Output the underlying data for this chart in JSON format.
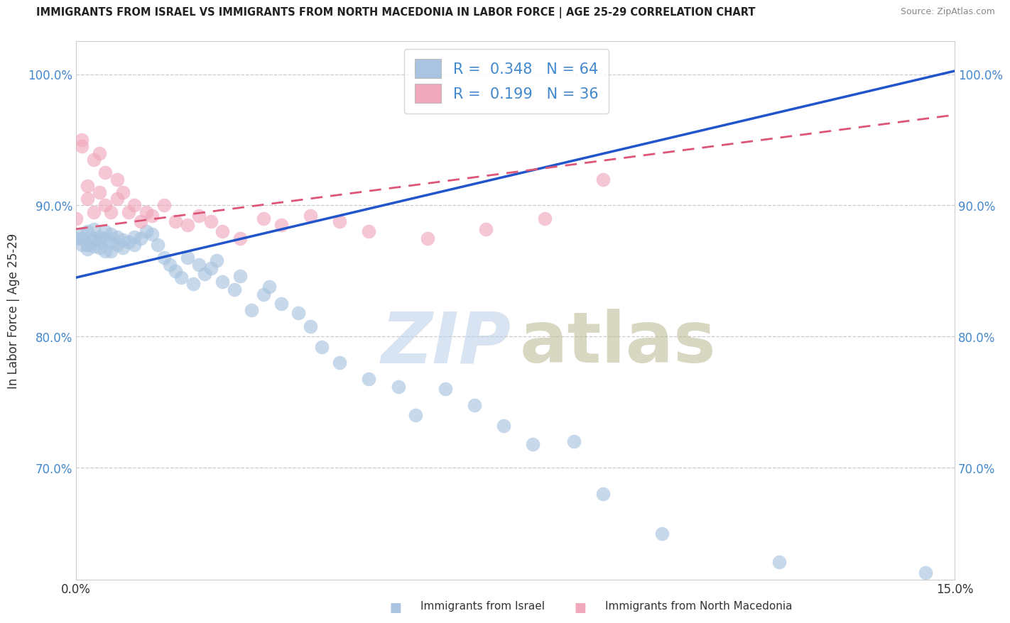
{
  "title": "IMMIGRANTS FROM ISRAEL VS IMMIGRANTS FROM NORTH MACEDONIA IN LABOR FORCE | AGE 25-29 CORRELATION CHART",
  "source": "Source: ZipAtlas.com",
  "xlabel_israel": "Immigrants from Israel",
  "xlabel_macedonia": "Immigrants from North Macedonia",
  "ylabel": "In Labor Force | Age 25-29",
  "xlim": [
    0.0,
    0.15
  ],
  "ylim": [
    0.615,
    1.025
  ],
  "yticks": [
    0.7,
    0.8,
    0.9,
    1.0
  ],
  "ytick_labels": [
    "70.0%",
    "80.0%",
    "90.0%",
    "100.0%"
  ],
  "legend_r_israel": "0.348",
  "legend_n_israel": "64",
  "legend_r_mac": "0.199",
  "legend_n_mac": "36",
  "blue_scatter_color": "#a8c4e0",
  "blue_line_color": "#2255cc",
  "pink_scatter_color": "#f0a8bc",
  "pink_line_color": "#dd5577",
  "watermark_zip_color": "#c8d8ee",
  "watermark_atlas_color": "#c8c8a0",
  "background_color": "#ffffff",
  "grid_color": "#cccccc",
  "title_color": "#222222",
  "source_color": "#888888",
  "axis_label_color": "#4488cc",
  "text_color": "#333333",
  "blue_line_intercept": 0.845,
  "blue_line_slope": 1.05,
  "pink_line_intercept": 0.882,
  "pink_line_slope": 0.58,
  "israel_x": [
    0.0,
    0.001,
    0.001,
    0.001,
    0.002,
    0.002,
    0.002,
    0.003,
    0.003,
    0.003,
    0.003,
    0.004,
    0.004,
    0.004,
    0.005,
    0.005,
    0.005,
    0.006,
    0.006,
    0.006,
    0.007,
    0.007,
    0.008,
    0.008,
    0.009,
    0.01,
    0.01,
    0.011,
    0.012,
    0.013,
    0.014,
    0.015,
    0.016,
    0.017,
    0.018,
    0.019,
    0.02,
    0.021,
    0.022,
    0.023,
    0.024,
    0.025,
    0.027,
    0.028,
    0.03,
    0.032,
    0.033,
    0.035,
    0.038,
    0.04,
    0.042,
    0.045,
    0.05,
    0.055,
    0.058,
    0.063,
    0.068,
    0.073,
    0.078,
    0.085,
    0.09,
    0.1,
    0.12,
    0.145
  ],
  "israel_y": [
    0.875,
    0.875,
    0.878,
    0.87,
    0.88,
    0.87,
    0.867,
    0.882,
    0.875,
    0.873,
    0.869,
    0.876,
    0.872,
    0.868,
    0.88,
    0.875,
    0.865,
    0.878,
    0.872,
    0.865,
    0.876,
    0.87,
    0.874,
    0.868,
    0.872,
    0.876,
    0.87,
    0.875,
    0.88,
    0.878,
    0.87,
    0.86,
    0.855,
    0.85,
    0.845,
    0.86,
    0.84,
    0.855,
    0.848,
    0.852,
    0.858,
    0.842,
    0.836,
    0.846,
    0.82,
    0.832,
    0.838,
    0.825,
    0.818,
    0.808,
    0.792,
    0.78,
    0.768,
    0.762,
    0.74,
    0.76,
    0.748,
    0.732,
    0.718,
    0.72,
    0.68,
    0.65,
    0.628,
    0.62
  ],
  "macedonia_x": [
    0.0,
    0.001,
    0.001,
    0.002,
    0.002,
    0.003,
    0.003,
    0.004,
    0.004,
    0.005,
    0.005,
    0.006,
    0.007,
    0.007,
    0.008,
    0.009,
    0.01,
    0.011,
    0.012,
    0.013,
    0.015,
    0.017,
    0.019,
    0.021,
    0.023,
    0.025,
    0.028,
    0.032,
    0.035,
    0.04,
    0.045,
    0.05,
    0.06,
    0.07,
    0.08,
    0.09
  ],
  "macedonia_y": [
    0.89,
    0.945,
    0.95,
    0.905,
    0.915,
    0.895,
    0.935,
    0.94,
    0.91,
    0.9,
    0.925,
    0.895,
    0.92,
    0.905,
    0.91,
    0.895,
    0.9,
    0.888,
    0.895,
    0.892,
    0.9,
    0.888,
    0.885,
    0.892,
    0.888,
    0.88,
    0.875,
    0.89,
    0.885,
    0.892,
    0.888,
    0.88,
    0.875,
    0.882,
    0.89,
    0.92
  ]
}
